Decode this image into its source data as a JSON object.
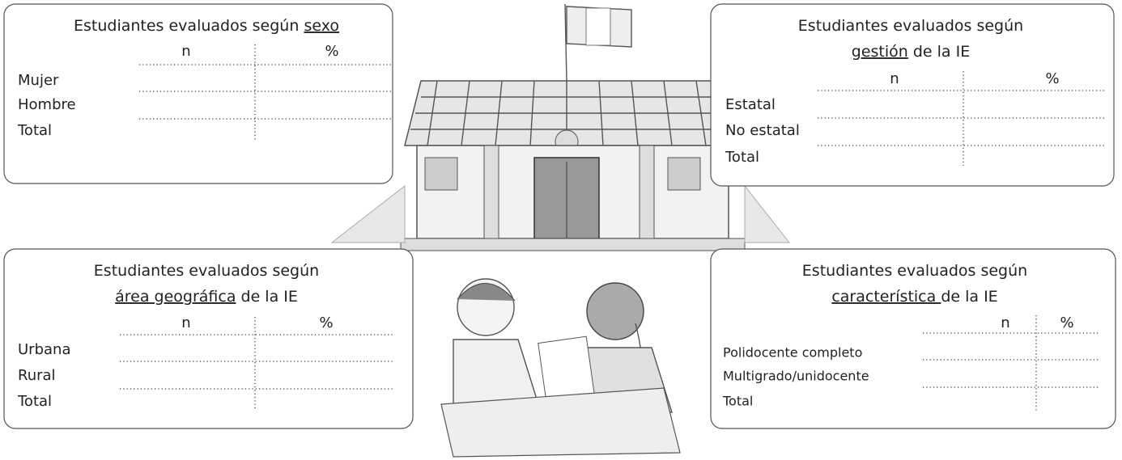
{
  "boxes": [
    {
      "title": [
        [
          {
            "text": "Estudiantes evaluados según "
          },
          {
            "text": "sexo",
            "underline": true
          }
        ]
      ],
      "columns": [
        "n",
        "%"
      ],
      "rows": [
        "Mujer",
        "Hombre",
        "Total"
      ]
    },
    {
      "title": [
        [
          {
            "text": "Estudiantes evaluados según"
          }
        ],
        [
          {
            "text": "gestión",
            "underline": true
          },
          {
            "text": " de la IE"
          }
        ]
      ],
      "columns": [
        "n",
        "%"
      ],
      "rows": [
        "Estatal",
        "No estatal",
        "Total"
      ]
    },
    {
      "title": [
        [
          {
            "text": "Estudiantes evaluados según"
          }
        ],
        [
          {
            "text": "área geográfica",
            "underline": true
          },
          {
            "text": " de la IE"
          }
        ]
      ],
      "columns": [
        "n",
        "%"
      ],
      "rows": [
        "Urbana",
        "Rural",
        "Total"
      ]
    },
    {
      "title": [
        [
          {
            "text": "Estudiantes evaluados según"
          }
        ],
        [
          {
            "text": "característica ",
            "underline": true
          },
          {
            "text": "de la IE"
          }
        ]
      ],
      "columns": [
        "n",
        "%"
      ],
      "rows": [
        "Polidocente completo",
        "Multigrado/unidocente",
        "Total"
      ]
    }
  ]
}
